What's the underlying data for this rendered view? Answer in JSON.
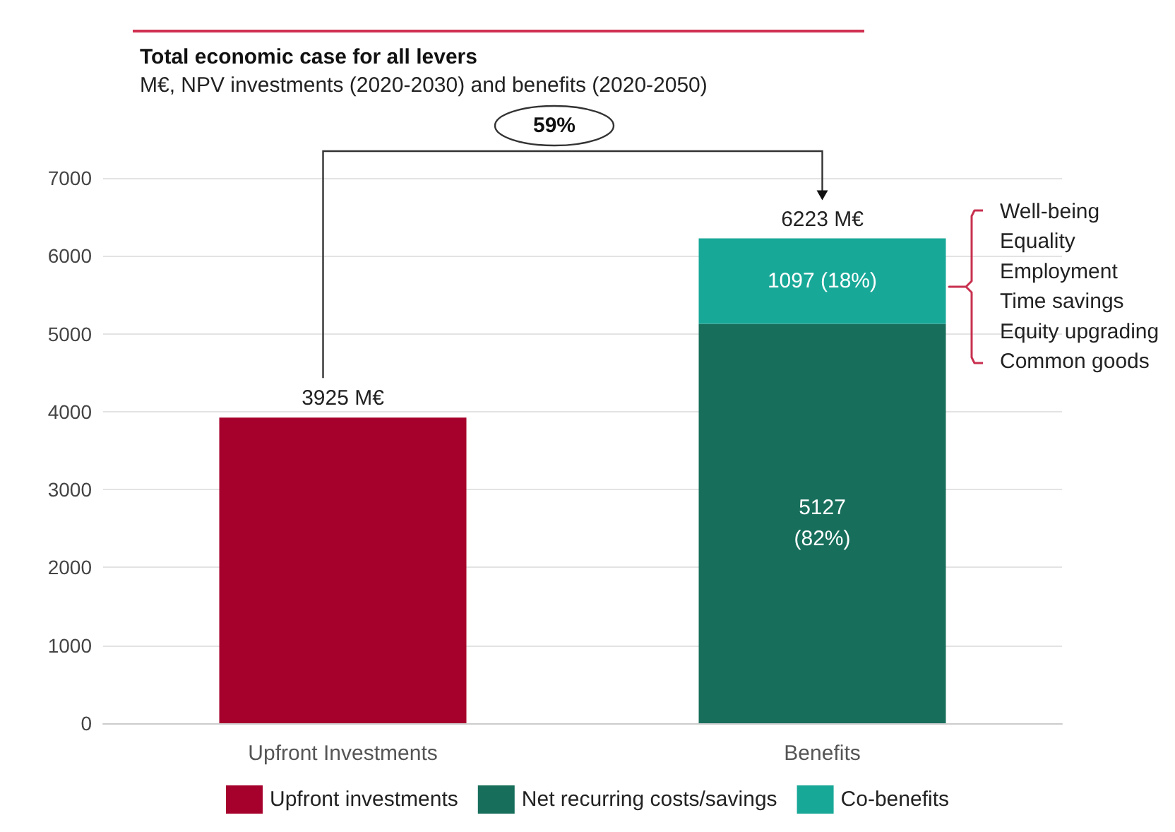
{
  "chart_data": {
    "type": "bar",
    "title": "Total economic case for all levers",
    "subtitle": "M€, NPV investments (2020-2030) and benefits (2020-2050)",
    "categories": [
      "Upfront Investments",
      "Benefits"
    ],
    "stacked": true,
    "series": [
      {
        "name": "Upfront investments",
        "color": "#a6002c",
        "values": [
          3925,
          null
        ]
      },
      {
        "name": "Net recurring costs/savings",
        "color": "#176e5b",
        "values": [
          null,
          5127
        ],
        "value_labels": [
          null,
          "5127\n(82%)"
        ]
      },
      {
        "name": "Co-benefits",
        "color": "#18a898",
        "values": [
          null,
          1097
        ],
        "value_labels": [
          null,
          "1097 (18%)"
        ]
      }
    ],
    "totals": [
      "3925 M€",
      "6223 M€"
    ],
    "annotations": [
      "59%",
      "Well-being",
      "Equality",
      "Employment",
      "Time savings",
      "Equity upgrading",
      "Common goods"
    ],
    "ylim": [
      0,
      7000
    ],
    "yticks": [
      0,
      1000,
      2000,
      3000,
      4000,
      5000,
      6000,
      7000
    ],
    "grid": "y",
    "legend": "bottom"
  }
}
